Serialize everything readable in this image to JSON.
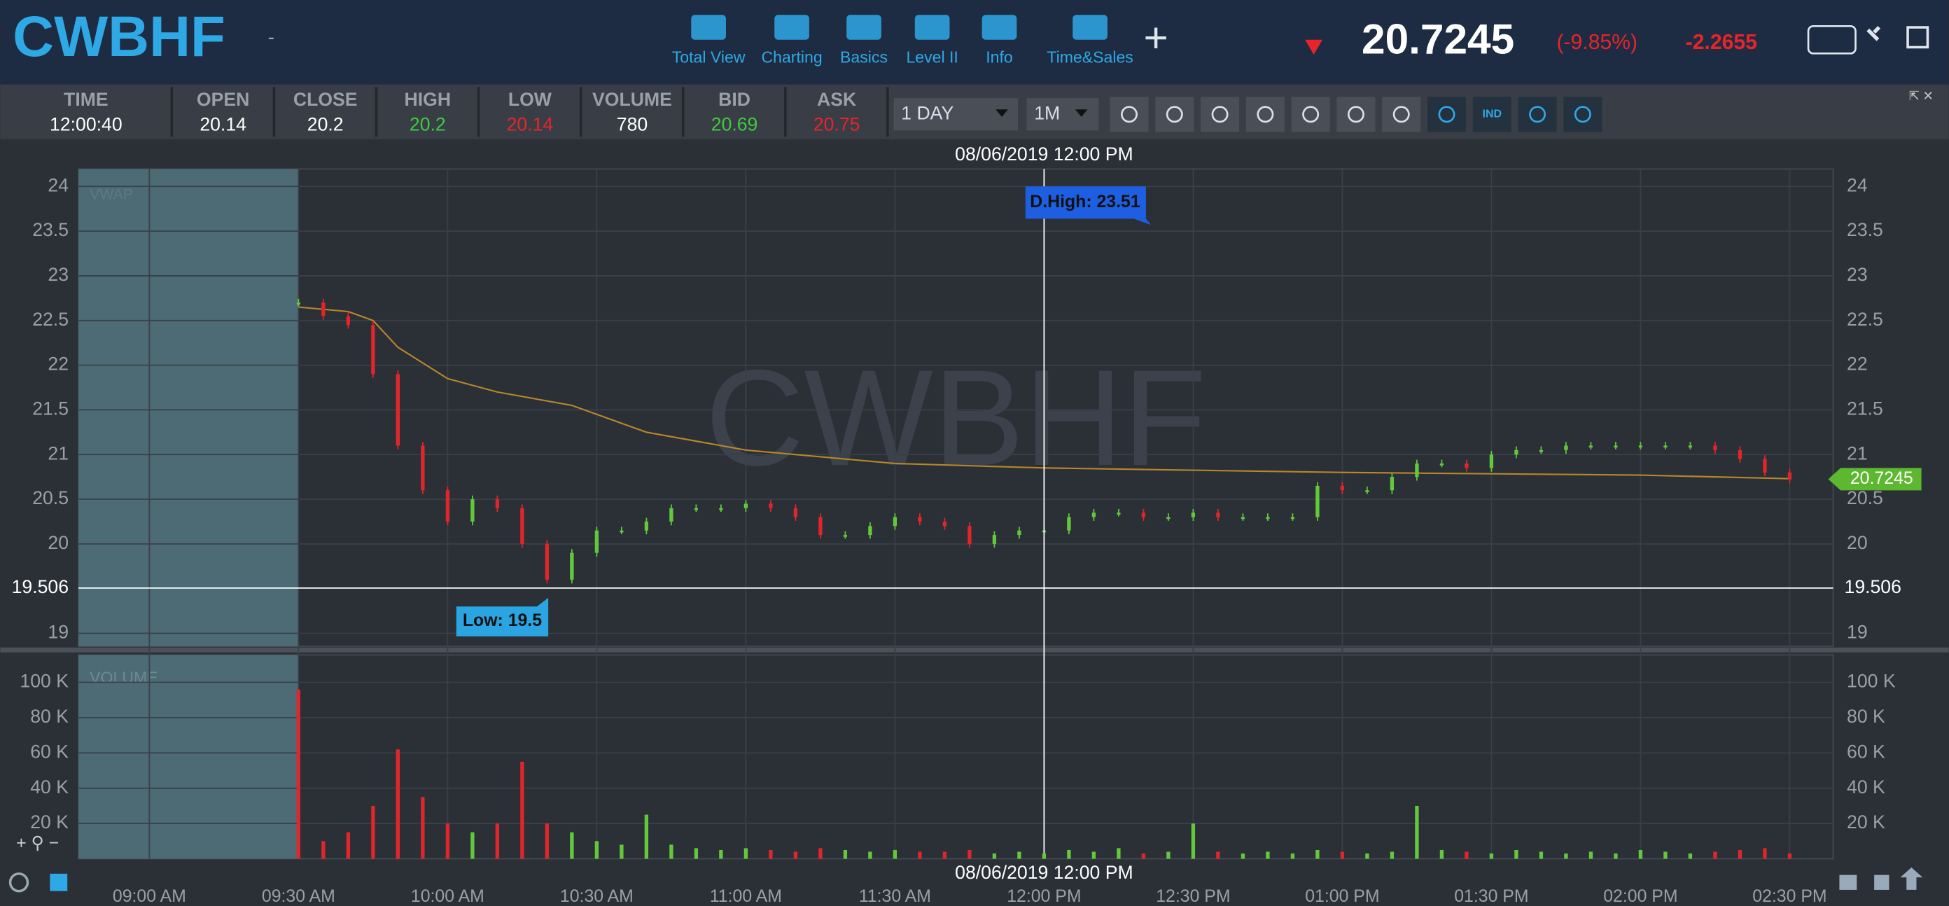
{
  "header": {
    "symbol": "CWBHF",
    "dash": "-",
    "tools": [
      "Total View",
      "Charting",
      "Basics",
      "Level II",
      "Info",
      "Time&Sales"
    ],
    "price": 20.7245,
    "change_pct": "(-9.85%)",
    "change": -2.2655
  },
  "quote": {
    "fields": [
      {
        "label": "TIME",
        "value": "12:00:40",
        "color": "#ffffff"
      },
      {
        "label": "OPEN",
        "value": "20.14",
        "color": "#ffffff"
      },
      {
        "label": "CLOSE",
        "value": "20.2",
        "color": "#ffffff"
      },
      {
        "label": "HIGH",
        "value": "20.2",
        "color": "#3ecb3e"
      },
      {
        "label": "LOW",
        "value": "20.14",
        "color": "#e8242a"
      },
      {
        "label": "VOLUME",
        "value": "780",
        "color": "#ffffff"
      },
      {
        "label": "BID",
        "value": "20.69",
        "color": "#3ecb3e"
      },
      {
        "label": "ASK",
        "value": "20.75",
        "color": "#e8242a"
      }
    ]
  },
  "controls": {
    "period": "1 DAY",
    "interval": "1M",
    "ind": "IND"
  },
  "chart_data": [
    {
      "type": "candlestick",
      "watermark": "CWBHF",
      "indicator_label": "VWAP",
      "up_color": "#62c93b",
      "down_color": "#e0262a",
      "x": [
        570,
        575,
        580,
        585,
        590,
        595,
        600,
        605,
        610,
        615,
        620,
        625,
        630,
        635,
        640,
        645,
        650,
        655,
        660,
        665,
        670,
        675,
        680,
        685,
        690,
        695,
        700,
        705,
        710,
        715,
        720,
        725,
        730,
        735,
        740,
        745,
        750,
        755,
        760,
        765,
        770,
        775,
        780,
        785,
        790,
        795,
        800,
        805,
        810,
        815,
        820,
        825,
        830,
        835,
        840,
        845,
        850,
        855,
        860,
        865,
        870
      ],
      "values": [
        22.7,
        22.55,
        22.45,
        21.9,
        21.1,
        20.6,
        20.25,
        20.5,
        20.4,
        20.0,
        19.6,
        19.9,
        20.15,
        20.15,
        20.25,
        20.4,
        20.4,
        20.4,
        20.45,
        20.4,
        20.3,
        20.1,
        20.1,
        20.2,
        20.3,
        20.25,
        20.2,
        20.0,
        20.1,
        20.15,
        20.15,
        20.3,
        20.35,
        20.35,
        20.3,
        20.3,
        20.35,
        20.3,
        20.3,
        20.3,
        20.3,
        20.65,
        20.6,
        20.6,
        20.75,
        20.9,
        20.9,
        20.85,
        21.0,
        21.05,
        21.05,
        21.1,
        21.1,
        21.1,
        21.1,
        21.1,
        21.1,
        21.05,
        20.95,
        20.8,
        20.72
      ],
      "vwap": {
        "color": "#b8862b",
        "x": [
          570,
          580,
          585,
          590,
          600,
          610,
          625,
          640,
          660,
          690,
          720,
          780,
          840,
          870
        ],
        "values": [
          22.65,
          22.6,
          22.5,
          22.2,
          21.85,
          21.7,
          21.55,
          21.25,
          21.05,
          20.9,
          20.85,
          20.8,
          20.77,
          20.73
        ]
      },
      "xlim": [
        525.75,
        878.75
      ],
      "ylim": [
        18.855,
        24.195
      ],
      "yticks": [
        19,
        20,
        20.5,
        21,
        21.5,
        22,
        22.5,
        23,
        23.5,
        24
      ],
      "last_price": 20.7245,
      "crosshair": {
        "x": 720,
        "y": 19.506,
        "time_label": "08/06/2019 12:00 PM"
      },
      "annotations": {
        "high": "D.High: 23.51",
        "low": "Low: 19.5"
      }
    },
    {
      "type": "bar",
      "title": "VOLUME",
      "x": [
        570,
        575,
        580,
        585,
        590,
        595,
        600,
        605,
        610,
        615,
        620,
        625,
        630,
        635,
        640,
        645,
        650,
        655,
        660,
        665,
        670,
        675,
        680,
        685,
        690,
        695,
        700,
        705,
        710,
        715,
        720,
        725,
        730,
        735,
        740,
        745,
        750,
        755,
        760,
        765,
        770,
        775,
        780,
        785,
        790,
        795,
        800,
        805,
        810,
        815,
        820,
        825,
        830,
        835,
        840,
        845,
        850,
        855,
        860,
        865,
        870
      ],
      "values": [
        96000,
        10000,
        15000,
        30000,
        62000,
        35000,
        20000,
        15000,
        20000,
        55000,
        20000,
        15000,
        10000,
        8000,
        25000,
        8000,
        6000,
        5000,
        6000,
        5000,
        4000,
        6000,
        5000,
        4000,
        5000,
        4000,
        4000,
        5000,
        3000,
        4000,
        3000,
        5000,
        4000,
        6000,
        3000,
        4000,
        20000,
        4000,
        3000,
        4000,
        3000,
        5000,
        4000,
        3000,
        4000,
        30000,
        5000,
        4000,
        3000,
        5000,
        4000,
        3000,
        4000,
        3000,
        5000,
        4000,
        3000,
        4000,
        5000,
        6000,
        3000
      ],
      "xlim": [
        525.75,
        878.75
      ],
      "ylim": [
        0,
        115500
      ],
      "yticks": [
        {
          "value": 20000,
          "label": "20 K"
        },
        {
          "value": 40000,
          "label": "40 K"
        },
        {
          "value": 60000,
          "label": "60 K"
        },
        {
          "value": 80000,
          "label": "80 K"
        },
        {
          "value": 100000,
          "label": "100 K"
        }
      ],
      "xticks": [
        {
          "value": 540,
          "label": "09:00 AM"
        },
        {
          "value": 570,
          "label": "09:30 AM"
        },
        {
          "value": 600,
          "label": "10:00 AM"
        },
        {
          "value": 630,
          "label": "10:30 AM"
        },
        {
          "value": 660,
          "label": "11:00 AM"
        },
        {
          "value": 690,
          "label": "11:30 AM"
        },
        {
          "value": 720,
          "label": "12:00 PM"
        },
        {
          "value": 750,
          "label": "12:30 PM"
        },
        {
          "value": 780,
          "label": "01:00 PM"
        },
        {
          "value": 810,
          "label": "01:30 PM"
        },
        {
          "value": 840,
          "label": "02:00 PM"
        },
        {
          "value": 870,
          "label": "02:30 PM"
        }
      ]
    }
  ]
}
